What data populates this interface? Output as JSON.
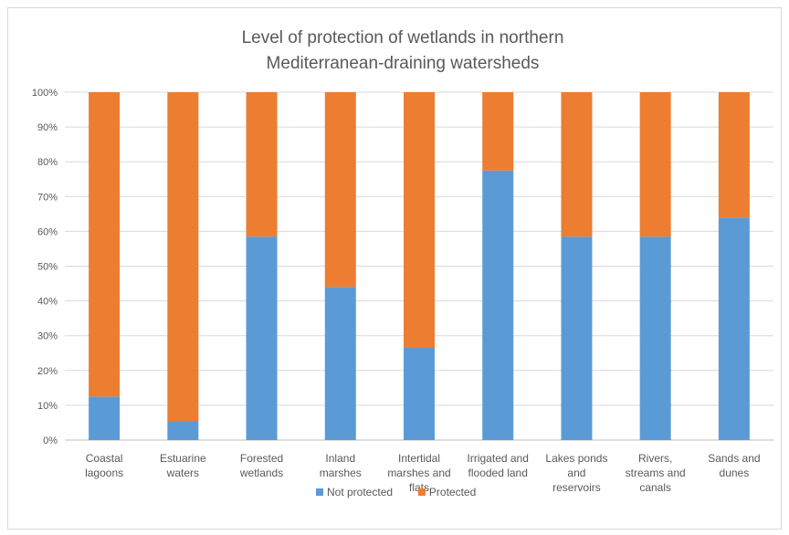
{
  "chart_data": {
    "type": "bar",
    "stacked": true,
    "title": [
      "Level of protection of wetlands in northern",
      "Mediterranean-draining watersheds"
    ],
    "categories": [
      [
        "Coastal",
        "lagoons"
      ],
      [
        "Estuarine",
        "waters"
      ],
      [
        "Forested",
        "wetlands"
      ],
      [
        "Inland",
        "marshes"
      ],
      [
        "Intertidal",
        "marshes and",
        "flats"
      ],
      [
        "Irrigated and",
        "flooded land"
      ],
      [
        "Lakes ponds",
        "and",
        "reservoirs"
      ],
      [
        "Rivers,",
        "streams and",
        "canals"
      ],
      [
        "Sands and",
        "dunes"
      ]
    ],
    "series": [
      {
        "name": "Not protected",
        "color": "#5b9bd5",
        "values": [
          12.5,
          5.5,
          58.5,
          44,
          26.5,
          77.5,
          58.5,
          58.5,
          64
        ]
      },
      {
        "name": "Protected",
        "color": "#ed7d31",
        "values": [
          87.5,
          94.5,
          41.5,
          56,
          73.5,
          22.5,
          41.5,
          41.5,
          36
        ]
      }
    ],
    "yticks": [
      "0%",
      "10%",
      "20%",
      "30%",
      "40%",
      "50%",
      "60%",
      "70%",
      "80%",
      "90%",
      "100%"
    ],
    "ylim": [
      0,
      100
    ],
    "grid": true,
    "legend": "bottom"
  }
}
